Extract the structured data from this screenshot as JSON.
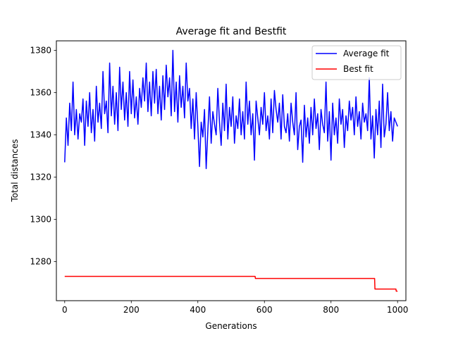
{
  "chart_data": {
    "type": "line",
    "title": "Average fit and Bestfit",
    "xlabel": "Generations",
    "ylabel": "Total distances",
    "xlim": [
      -25,
      1025
    ],
    "ylim": [
      1261.5,
      1384.5
    ],
    "x_ticks": [
      0,
      200,
      400,
      600,
      800,
      1000
    ],
    "y_ticks": [
      1280,
      1300,
      1320,
      1340,
      1360,
      1380
    ],
    "legend_position": "top-right",
    "grid": false,
    "series": [
      {
        "name": "Average fit",
        "color": "#0000ff",
        "x": [
          0,
          5,
          10,
          15,
          20,
          25,
          30,
          35,
          40,
          45,
          50,
          55,
          60,
          65,
          70,
          75,
          80,
          85,
          90,
          95,
          100,
          105,
          110,
          115,
          120,
          125,
          130,
          135,
          140,
          145,
          150,
          155,
          160,
          165,
          170,
          175,
          180,
          185,
          190,
          195,
          200,
          205,
          210,
          215,
          220,
          225,
          230,
          235,
          240,
          245,
          250,
          255,
          260,
          265,
          270,
          275,
          280,
          285,
          290,
          295,
          300,
          305,
          310,
          315,
          320,
          325,
          330,
          335,
          340,
          345,
          350,
          355,
          360,
          365,
          370,
          375,
          380,
          385,
          390,
          395,
          400,
          405,
          410,
          415,
          420,
          425,
          430,
          435,
          440,
          445,
          450,
          455,
          460,
          465,
          470,
          475,
          480,
          485,
          490,
          495,
          500,
          505,
          510,
          515,
          520,
          525,
          530,
          535,
          540,
          545,
          550,
          555,
          560,
          565,
          570,
          575,
          580,
          585,
          590,
          595,
          600,
          605,
          610,
          615,
          620,
          625,
          630,
          635,
          640,
          645,
          650,
          655,
          660,
          665,
          670,
          675,
          680,
          685,
          690,
          695,
          700,
          705,
          710,
          715,
          720,
          725,
          730,
          735,
          740,
          745,
          750,
          755,
          760,
          765,
          770,
          775,
          780,
          785,
          790,
          795,
          800,
          805,
          810,
          815,
          820,
          825,
          830,
          835,
          840,
          845,
          850,
          855,
          860,
          865,
          870,
          875,
          880,
          885,
          890,
          895,
          900,
          905,
          910,
          915,
          920,
          925,
          930,
          935,
          940,
          945,
          950,
          955,
          960,
          965,
          970,
          975,
          980,
          985,
          990,
          995,
          1000
        ],
        "values": [
          1327,
          1348,
          1335,
          1355,
          1342,
          1365,
          1340,
          1352,
          1338,
          1350,
          1346,
          1357,
          1335,
          1356,
          1344,
          1360,
          1341,
          1352,
          1337,
          1363,
          1346,
          1355,
          1343,
          1370,
          1350,
          1356,
          1341,
          1374,
          1349,
          1363,
          1345,
          1360,
          1342,
          1372,
          1352,
          1365,
          1347,
          1360,
          1344,
          1370,
          1350,
          1366,
          1348,
          1358,
          1345,
          1362,
          1353,
          1367,
          1356,
          1374,
          1351,
          1365,
          1349,
          1370,
          1355,
          1371,
          1350,
          1363,
          1347,
          1368,
          1352,
          1373,
          1358,
          1367,
          1349,
          1380,
          1351,
          1365,
          1346,
          1368,
          1353,
          1363,
          1348,
          1374,
          1356,
          1362,
          1343,
          1357,
          1338,
          1360,
          1344,
          1325,
          1346,
          1339,
          1352,
          1324,
          1342,
          1358,
          1336,
          1351,
          1345,
          1340,
          1362,
          1346,
          1335,
          1355,
          1342,
          1364,
          1338,
          1353,
          1344,
          1358,
          1336,
          1349,
          1343,
          1357,
          1340,
          1351,
          1338,
          1365,
          1345,
          1356,
          1340,
          1350,
          1328,
          1356,
          1348,
          1340,
          1353,
          1345,
          1360,
          1342,
          1349,
          1338,
          1357,
          1341,
          1361,
          1352,
          1346,
          1355,
          1338,
          1359,
          1344,
          1341,
          1350,
          1337,
          1355,
          1346,
          1340,
          1360,
          1333,
          1344,
          1347,
          1327,
          1354,
          1339,
          1348,
          1336,
          1353,
          1340,
          1357,
          1343,
          1350,
          1333,
          1352,
          1345,
          1341,
          1365,
          1337,
          1351,
          1328,
          1355,
          1340,
          1348,
          1336,
          1357,
          1345,
          1352,
          1334,
          1349,
          1342,
          1356,
          1347,
          1353,
          1340,
          1358,
          1344,
          1351,
          1338,
          1355,
          1346,
          1350,
          1342,
          1367,
          1338,
          1349,
          1329,
          1352,
          1340,
          1356,
          1334,
          1364,
          1339,
          1345,
          1360,
          1342,
          1351,
          1337,
          1348,
          1346,
          1344
        ]
      },
      {
        "name": "Best fit",
        "color": "#ff0000",
        "x": [
          0,
          572,
          573,
          931,
          932,
          995,
          996,
          1000
        ],
        "values": [
          1273,
          1273,
          1272,
          1272,
          1267,
          1267,
          1266,
          1266
        ]
      }
    ]
  }
}
